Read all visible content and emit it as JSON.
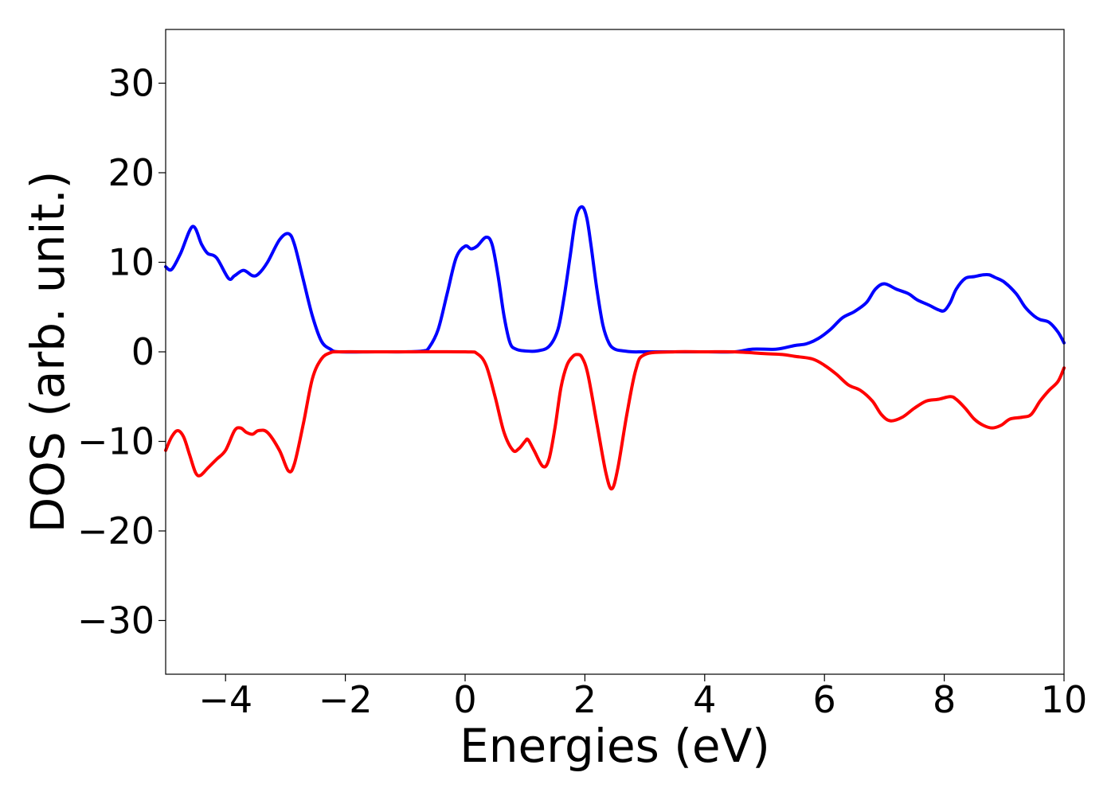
{
  "chart_data": {
    "type": "line",
    "title": "",
    "xlabel": "Energies (eV)",
    "ylabel": "DOS (arb. unit.)",
    "xlim": [
      -5,
      10
    ],
    "ylim": [
      -36,
      36
    ],
    "grid": false,
    "legend": "none",
    "x_ticks": [
      -4,
      -2,
      0,
      2,
      4,
      6,
      8,
      10
    ],
    "x_tick_labels": [
      "−4",
      "−2",
      "0",
      "2",
      "4",
      "6",
      "8",
      "10"
    ],
    "y_ticks": [
      30,
      20,
      10,
      0,
      -10,
      -20,
      -30
    ],
    "y_tick_labels": [
      "30",
      "20",
      "10",
      "0",
      "−10",
      "−20",
      "−30"
    ],
    "series": [
      {
        "color": "#0000ff",
        "x": [
          -5.0,
          -4.9,
          -4.75,
          -4.55,
          -4.4,
          -4.3,
          -4.15,
          -3.95,
          -3.85,
          -3.7,
          -3.55,
          -3.45,
          -3.3,
          -3.1,
          -2.95,
          -2.85,
          -2.7,
          -2.55,
          -2.4,
          -2.25,
          -2.1,
          -1.5,
          -1.0,
          -0.7,
          -0.6,
          -0.45,
          -0.3,
          -0.15,
          0.0,
          0.1,
          0.2,
          0.35,
          0.45,
          0.55,
          0.65,
          0.75,
          0.85,
          1.0,
          1.2,
          1.4,
          1.55,
          1.65,
          1.75,
          1.85,
          1.95,
          2.03,
          2.1,
          2.2,
          2.3,
          2.4,
          2.5,
          2.65,
          2.8,
          3.0,
          3.5,
          4.0,
          4.5,
          4.8,
          5.2,
          5.5,
          5.7,
          5.9,
          6.1,
          6.3,
          6.5,
          6.7,
          6.85,
          7.0,
          7.2,
          7.4,
          7.55,
          7.75,
          7.9,
          8.0,
          8.1,
          8.2,
          8.35,
          8.5,
          8.65,
          8.75,
          8.85,
          9.0,
          9.2,
          9.35,
          9.5,
          9.6,
          9.75,
          9.9,
          10.0
        ],
        "y": [
          9.5,
          9.2,
          11.0,
          14.0,
          12.0,
          11.0,
          10.5,
          8.2,
          8.5,
          9.1,
          8.5,
          8.7,
          10.0,
          12.5,
          13.2,
          12.0,
          8.0,
          4.0,
          1.2,
          0.3,
          0.0,
          0.0,
          0.0,
          0.1,
          0.5,
          2.5,
          6.5,
          10.5,
          11.8,
          11.5,
          11.8,
          12.8,
          12.0,
          8.5,
          4.0,
          1.0,
          0.3,
          0.1,
          0.1,
          0.6,
          2.5,
          6.0,
          10.5,
          15.0,
          16.2,
          15.0,
          12.0,
          7.0,
          3.0,
          1.0,
          0.3,
          0.1,
          0.0,
          0.0,
          0.0,
          0.0,
          0.0,
          0.3,
          0.3,
          0.7,
          0.9,
          1.5,
          2.5,
          3.8,
          4.5,
          5.5,
          7.0,
          7.6,
          7.0,
          6.5,
          5.8,
          5.2,
          4.7,
          4.6,
          5.5,
          7.0,
          8.2,
          8.4,
          8.6,
          8.6,
          8.3,
          7.8,
          6.5,
          5.0,
          4.0,
          3.6,
          3.3,
          2.2,
          1.0
        ]
      },
      {
        "color": "#ff0000",
        "x": [
          -5.0,
          -4.9,
          -4.8,
          -4.7,
          -4.6,
          -4.5,
          -4.42,
          -4.3,
          -4.15,
          -4.0,
          -3.85,
          -3.75,
          -3.65,
          -3.55,
          -3.45,
          -3.3,
          -3.1,
          -2.95,
          -2.85,
          -2.7,
          -2.55,
          -2.4,
          -2.25,
          -2.1,
          -1.5,
          -1.0,
          0.0,
          0.2,
          0.35,
          0.5,
          0.65,
          0.8,
          0.9,
          1.0,
          1.05,
          1.15,
          1.3,
          1.4,
          1.5,
          1.6,
          1.7,
          1.8,
          1.87,
          1.95,
          2.05,
          2.2,
          2.35,
          2.45,
          2.55,
          2.7,
          2.85,
          3.0,
          3.5,
          4.0,
          4.5,
          5.0,
          5.3,
          5.5,
          5.8,
          6.0,
          6.2,
          6.4,
          6.6,
          6.8,
          6.95,
          7.1,
          7.3,
          7.5,
          7.7,
          7.9,
          8.1,
          8.2,
          8.35,
          8.5,
          8.65,
          8.8,
          8.95,
          9.1,
          9.3,
          9.45,
          9.6,
          9.75,
          9.9,
          10.0
        ],
        "y": [
          -11.0,
          -9.5,
          -8.8,
          -9.5,
          -11.5,
          -13.5,
          -13.8,
          -13.0,
          -12.0,
          -11.0,
          -8.8,
          -8.5,
          -9.0,
          -9.2,
          -8.8,
          -9.0,
          -11.0,
          -13.3,
          -12.5,
          -8.0,
          -3.0,
          -0.8,
          -0.1,
          0.0,
          0.0,
          0.0,
          0.0,
          -0.2,
          -1.5,
          -5.0,
          -9.0,
          -11.0,
          -10.8,
          -10.0,
          -9.8,
          -11.0,
          -12.8,
          -12.0,
          -8.5,
          -4.0,
          -1.5,
          -0.5,
          -0.3,
          -0.6,
          -2.5,
          -8.0,
          -13.5,
          -15.3,
          -13.0,
          -7.0,
          -2.0,
          -0.3,
          0.0,
          0.0,
          0.0,
          -0.2,
          -0.3,
          -0.5,
          -0.8,
          -1.5,
          -2.5,
          -3.7,
          -4.3,
          -5.5,
          -7.0,
          -7.7,
          -7.3,
          -6.3,
          -5.5,
          -5.3,
          -5.0,
          -5.3,
          -6.3,
          -7.5,
          -8.2,
          -8.5,
          -8.2,
          -7.5,
          -7.3,
          -7.0,
          -5.5,
          -4.3,
          -3.3,
          -1.8
        ]
      }
    ]
  }
}
